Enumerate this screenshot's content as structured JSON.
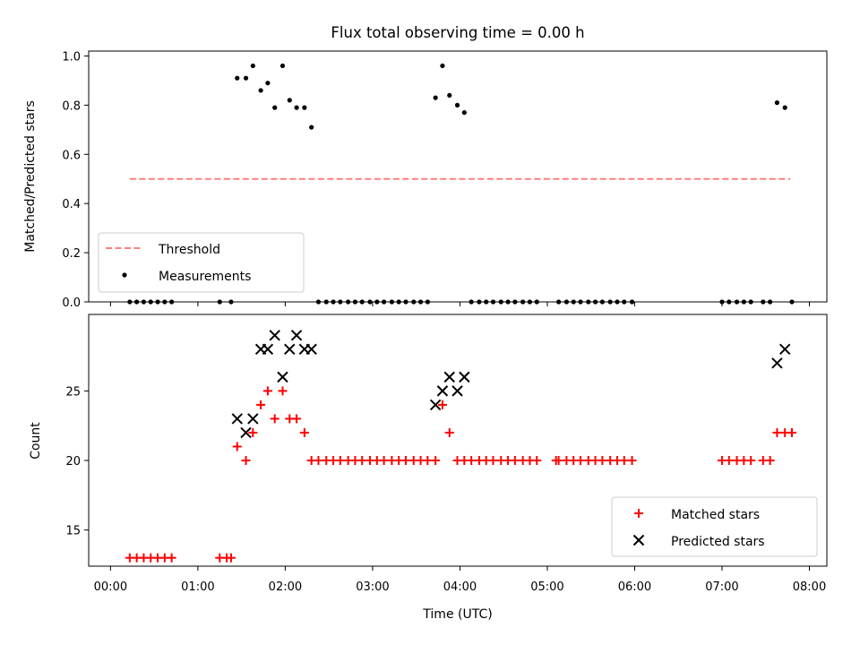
{
  "chart_data": [
    {
      "type": "scatter",
      "title": "Flux total observing time = 0.00 h",
      "xlabel": "",
      "ylabel": "Matched/Predicted stars",
      "xlim": [
        -0.25,
        8.2
      ],
      "ylim": [
        0,
        1.02
      ],
      "yticks": [
        0.0,
        0.2,
        0.4,
        0.6,
        0.8,
        1.0
      ],
      "ytick_labels": [
        "0.0",
        "0.2",
        "0.4",
        "0.6",
        "0.8",
        "1.0"
      ],
      "legend_position": "lower-left",
      "threshold": {
        "name": "Threshold",
        "value": 0.5,
        "x_range": [
          0.22,
          7.78
        ],
        "color": "#ff7f7f",
        "style": "dashed"
      },
      "series": [
        {
          "name": "Measurements",
          "color": "#000000",
          "marker": "dot",
          "x": [
            0.22,
            0.3,
            0.38,
            0.46,
            0.54,
            0.62,
            0.7,
            1.25,
            1.38,
            1.45,
            1.55,
            1.63,
            1.72,
            1.8,
            1.88,
            1.97,
            2.05,
            2.13,
            2.22,
            2.3,
            2.38,
            2.47,
            2.55,
            2.63,
            2.72,
            2.8,
            2.88,
            2.97,
            3.05,
            3.13,
            3.22,
            3.3,
            3.38,
            3.47,
            3.55,
            3.63,
            3.72,
            3.8,
            3.88,
            3.97,
            4.05,
            4.13,
            4.22,
            4.3,
            4.38,
            4.47,
            4.55,
            4.63,
            4.72,
            4.8,
            4.88,
            5.13,
            5.22,
            5.3,
            5.38,
            5.47,
            5.55,
            5.63,
            5.72,
            5.8,
            5.88,
            5.97,
            7.0,
            7.08,
            7.17,
            7.25,
            7.33,
            7.47,
            7.55,
            7.63,
            7.72,
            7.8
          ],
          "y": [
            0,
            0,
            0,
            0,
            0,
            0,
            0,
            0,
            0,
            0.91,
            0.91,
            0.96,
            0.86,
            0.89,
            0.79,
            0.96,
            0.82,
            0.79,
            0.79,
            0.71,
            0,
            0,
            0,
            0,
            0,
            0,
            0,
            0,
            0,
            0,
            0,
            0,
            0,
            0,
            0,
            0,
            0.83,
            0.96,
            0.84,
            0.8,
            0.77,
            0,
            0,
            0,
            0,
            0,
            0,
            0,
            0,
            0,
            0,
            0,
            0,
            0,
            0,
            0,
            0,
            0,
            0,
            0,
            0,
            0,
            0,
            0,
            0,
            0,
            0,
            0,
            0,
            0.81,
            0.79,
            0
          ]
        }
      ]
    },
    {
      "type": "scatter",
      "title": "",
      "xlabel": "Time (UTC)",
      "ylabel": "Count",
      "xlim": [
        -0.25,
        8.2
      ],
      "ylim": [
        12.4,
        30.5
      ],
      "yticks": [
        15,
        20,
        25
      ],
      "ytick_labels": [
        "15",
        "20",
        "25"
      ],
      "xticks": [
        0,
        1,
        2,
        3,
        4,
        5,
        6,
        7,
        8
      ],
      "xtick_labels": [
        "00:00",
        "01:00",
        "02:00",
        "03:00",
        "04:00",
        "05:00",
        "06:00",
        "07:00",
        "08:00"
      ],
      "legend_position": "lower-right",
      "series": [
        {
          "name": "Matched stars",
          "color": "#ff0000",
          "marker": "plus",
          "x": [
            0.22,
            0.3,
            0.38,
            0.46,
            0.54,
            0.62,
            0.7,
            1.25,
            1.33,
            1.38,
            1.45,
            1.55,
            1.63,
            1.72,
            1.8,
            1.88,
            1.97,
            2.05,
            2.13,
            2.22,
            2.3,
            2.38,
            2.47,
            2.55,
            2.63,
            2.72,
            2.8,
            2.88,
            2.97,
            3.05,
            3.13,
            3.22,
            3.3,
            3.38,
            3.47,
            3.55,
            3.63,
            3.72,
            3.8,
            3.88,
            3.97,
            4.05,
            4.13,
            4.22,
            4.3,
            4.38,
            4.47,
            4.55,
            4.63,
            4.72,
            4.8,
            4.88,
            5.1,
            5.13,
            5.22,
            5.3,
            5.38,
            5.47,
            5.55,
            5.63,
            5.72,
            5.8,
            5.88,
            5.97,
            7.0,
            7.08,
            7.17,
            7.25,
            7.33,
            7.47,
            7.55,
            7.63,
            7.72,
            7.8
          ],
          "y": [
            13,
            13,
            13,
            13,
            13,
            13,
            13,
            13,
            13,
            13,
            21,
            20,
            22,
            24,
            25,
            23,
            25,
            23,
            23,
            22,
            20,
            20,
            20,
            20,
            20,
            20,
            20,
            20,
            20,
            20,
            20,
            20,
            20,
            20,
            20,
            20,
            20,
            20,
            24,
            22,
            20,
            20,
            20,
            20,
            20,
            20,
            20,
            20,
            20,
            20,
            20,
            20,
            20,
            20,
            20,
            20,
            20,
            20,
            20,
            20,
            20,
            20,
            20,
            20,
            20,
            20,
            20,
            20,
            20,
            20,
            20,
            22,
            22,
            22
          ]
        },
        {
          "name": "Predicted stars",
          "color": "#000000",
          "marker": "x",
          "x": [
            1.45,
            1.55,
            1.63,
            1.72,
            1.8,
            1.88,
            1.97,
            2.05,
            2.13,
            2.22,
            2.3,
            3.72,
            3.8,
            3.88,
            3.97,
            4.05,
            7.63,
            7.72
          ],
          "y": [
            23,
            22,
            23,
            28,
            28,
            29,
            26,
            28,
            29,
            28,
            28,
            24,
            25,
            26,
            25,
            26,
            27,
            28
          ]
        }
      ]
    }
  ]
}
